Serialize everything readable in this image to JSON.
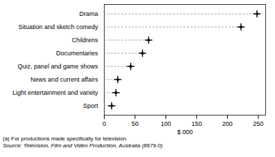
{
  "chart_data": {
    "type": "dot",
    "orientation": "horizontal",
    "categories": [
      "Drama",
      "Situation and sketch comedy",
      "Childrens",
      "Documentaries",
      "Quiz, panel and game shows",
      "News and current affairs",
      "Light entertainment and variety",
      "Sport"
    ],
    "values": [
      248,
      222,
      72,
      62,
      43,
      22,
      19,
      12
    ],
    "xlabel": "$ 000",
    "xlim": [
      0,
      262
    ],
    "xticks": [
      0,
      50,
      100,
      150,
      200,
      250
    ],
    "color": "#000000",
    "marker": "plus",
    "line_style": "dashed",
    "annotations": [
      "(a) For productions made specifically for television.",
      "Source: Television, Film and Video Production, Australia (8679.0)."
    ]
  }
}
